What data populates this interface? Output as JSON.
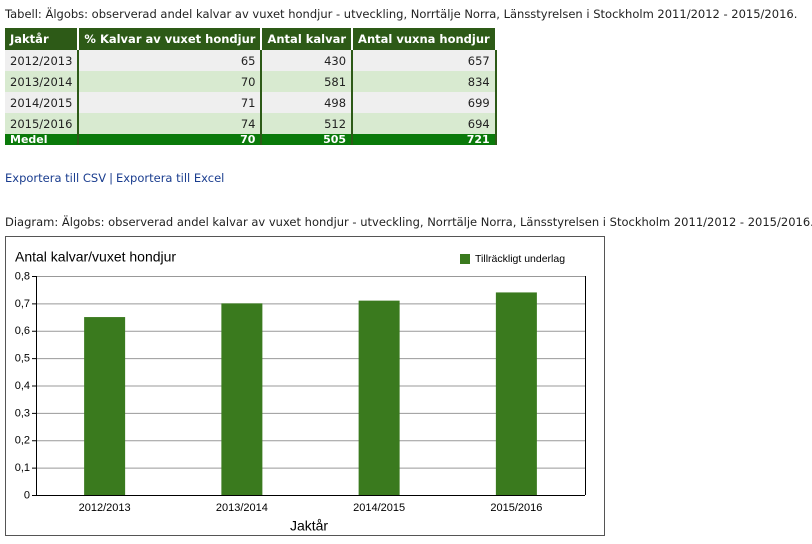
{
  "table_title": "Tabell: Älgobs: observerad andel kalvar av vuxet hondjur - utveckling, Norrtälje Norra, Länsstyrelsen i Stockholm 2011/2012 - 2015/2016.",
  "table": {
    "headers": [
      "Jaktår",
      "% Kalvar av vuxet hondjur",
      "Antal kalvar",
      "Antal vuxna hondjur"
    ],
    "rows": [
      [
        "2012/2013",
        65,
        430,
        657
      ],
      [
        "2013/2014",
        70,
        581,
        834
      ],
      [
        "2014/2015",
        71,
        498,
        699
      ],
      [
        "2015/2016",
        74,
        512,
        694
      ]
    ],
    "footer": [
      "Medel",
      70,
      505,
      721
    ]
  },
  "links": [
    "Exportera till CSV",
    "|",
    "Exportera till Excel"
  ],
  "diagram_title": "Diagram: Älgobs: observerad andel kalvar av vuxet hondjur - utveckling, Norrtälje Norra, Länsstyrelsen i Stockholm 2011/2012 - 2015/2016.",
  "chart_data": {
    "type": "bar",
    "y_label": "Antal kalvar/vuxet hondjur",
    "x_label": "Jaktår",
    "categories": [
      "2012/2013",
      "2013/2014",
      "2014/2015",
      "2015/2016"
    ],
    "series": [
      {
        "name": "Tillräckligt underlag",
        "color": "#3a7a1e",
        "values": [
          0.65,
          0.7,
          0.71,
          0.74
        ]
      }
    ],
    "ylim": [
      0,
      0.8
    ],
    "yticks": [
      0,
      {
        "value": 0.1,
        "label": "0,1"
      },
      {
        "value": 0.2,
        "label": "0,2"
      },
      {
        "value": 0.3,
        "label": "0,3"
      },
      {
        "value": 0.4,
        "label": "0,4"
      },
      {
        "value": 0.5,
        "label": "0,5"
      },
      {
        "value": 0.6,
        "label": "0,6"
      },
      {
        "value": 0.7,
        "label": "0,7"
      },
      {
        "value": 0.8,
        "label": "0,8"
      }
    ],
    "grid": true,
    "legend": "top-right"
  }
}
